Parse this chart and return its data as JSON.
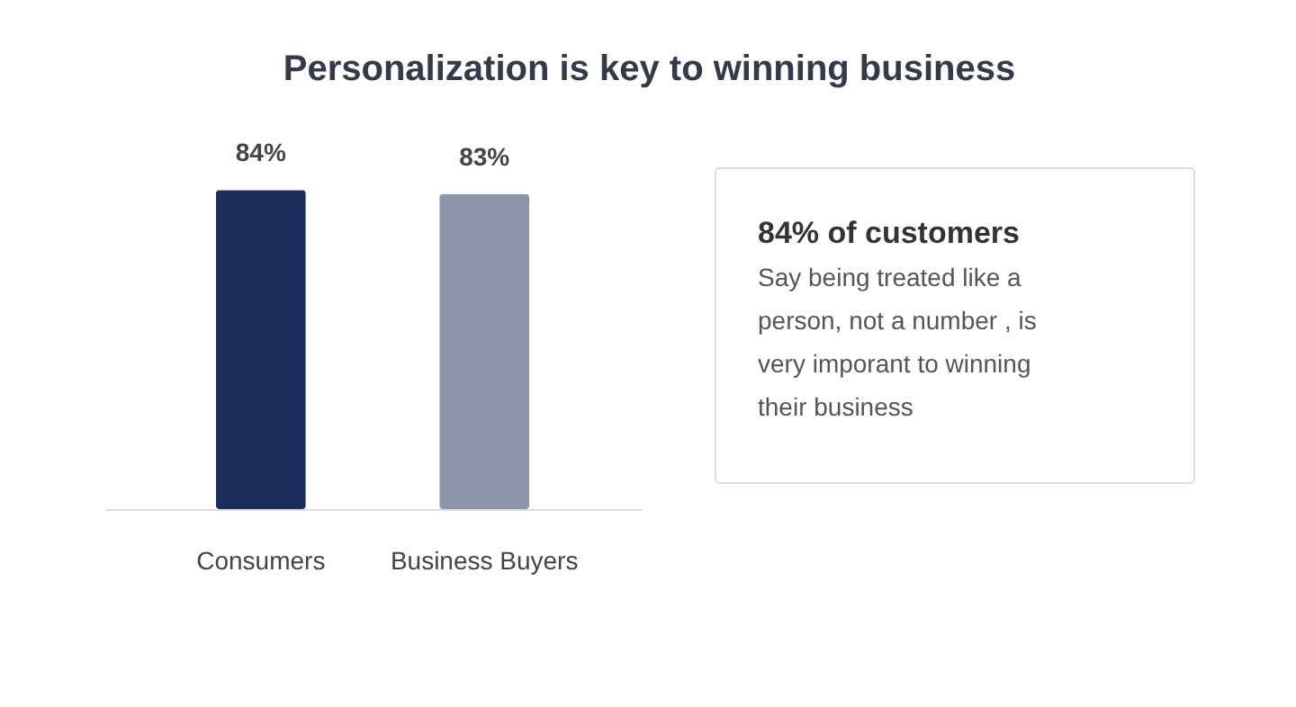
{
  "chart_data": {
    "type": "bar",
    "title": "Personalization is key to winning business",
    "categories": [
      "Consumers",
      "Business Buyers"
    ],
    "values": [
      84,
      83
    ],
    "colors": [
      "#1c2d5a",
      "#8c96a8"
    ],
    "value_labels": [
      "84%",
      "83%"
    ],
    "annotations": [
      "84% of customers",
      "Say being treated like a person, not a number , is very imporant to winning their business"
    ]
  }
}
